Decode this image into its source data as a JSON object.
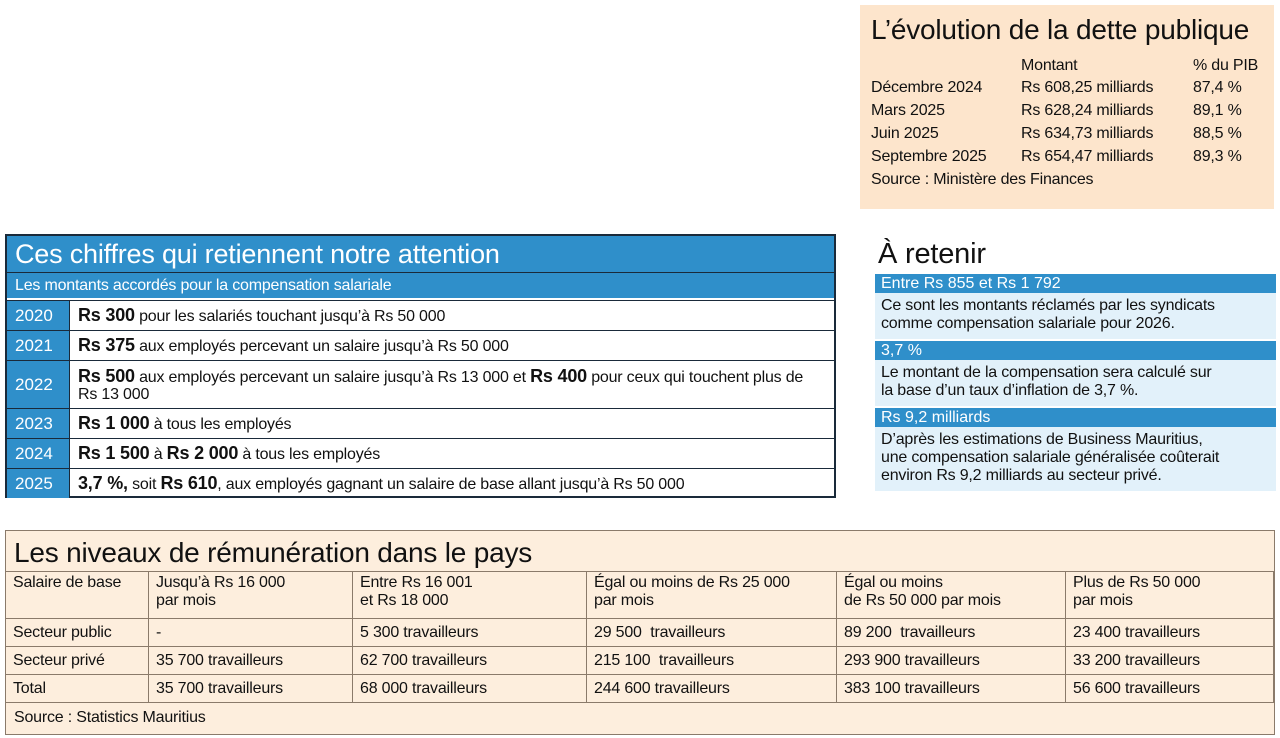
{
  "debt": {
    "title": "L’évolution de la dette publique",
    "columns": [
      "Montant",
      "% du PIB"
    ],
    "rows": [
      {
        "period": "Décembre 2024",
        "amount": "Rs 608,25 milliards",
        "pct": "87,4 %"
      },
      {
        "period": "Mars 2025",
        "amount": "Rs 628,24 milliards",
        "pct": "89,1 %"
      },
      {
        "period": "Juin 2025",
        "amount": "Rs 634,73 milliards",
        "pct": "88,5 %"
      },
      {
        "period": "Septembre 2025",
        "amount": "Rs 654,47 milliards",
        "pct": "89,3 %"
      }
    ],
    "source": "Source : Ministère des Finances"
  },
  "compensation": {
    "title": "Ces chiffres qui retiennent notre attention",
    "subtitle": "Les montants accordés pour la compensation salariale",
    "rows": [
      {
        "year": "2020",
        "parts": [
          {
            "text": "Rs 300",
            "bold": true
          },
          {
            "text": " pour les salariés touchant jusqu’à Rs 50 000"
          }
        ]
      },
      {
        "year": "2021",
        "parts": [
          {
            "text": "Rs 375",
            "bold": true
          },
          {
            "text": " aux employés percevant un salaire jusqu’à Rs 50 000"
          }
        ]
      },
      {
        "year": "2022",
        "parts": [
          {
            "text": "Rs 500",
            "bold": true
          },
          {
            "text": " aux employés percevant un salaire jusqu’à Rs 13 000 et "
          },
          {
            "text": "Rs 400",
            "bold": true
          },
          {
            "text": " pour ceux qui touchent plus de Rs 13 000"
          }
        ]
      },
      {
        "year": "2023",
        "parts": [
          {
            "text": "Rs 1 000",
            "bold": true
          },
          {
            "text": " à tous les employés"
          }
        ]
      },
      {
        "year": "2024",
        "parts": [
          {
            "text": "Rs 1 500",
            "bold": true
          },
          {
            "text": " à "
          },
          {
            "text": "Rs 2 000",
            "bold": true
          },
          {
            "text": " à tous les employés"
          }
        ]
      },
      {
        "year": "2025",
        "parts": [
          {
            "text": "3,7 %,",
            "bold": true
          },
          {
            "text": " soit "
          },
          {
            "text": "Rs 610",
            "bold": true
          },
          {
            "text": ", aux employés gagnant un salaire de base allant jusqu’à Rs 50 000"
          }
        ]
      }
    ]
  },
  "retenir": {
    "title": "À retenir",
    "items": [
      {
        "label": "Entre Rs 855 et Rs 1 792",
        "lines": [
          "Ce sont les montants réclamés par les syndicats",
          "comme compensation salariale pour 2026."
        ]
      },
      {
        "label": "3,7 %",
        "lines": [
          "Le montant de la compensation sera calculé sur",
          "la base d’un taux d’inflation de 3,7 %."
        ]
      },
      {
        "label": "Rs 9,2 milliards",
        "lines": [
          "D’après les estimations de Business Mauritius,",
          "une compensation salariale généralisée coûterait",
          "environ Rs 9,2 milliards au secteur privé."
        ]
      }
    ]
  },
  "pay": {
    "title": "Les niveaux de rémunération dans le pays",
    "columns": [
      [
        "Salaire de base"
      ],
      [
        "Jusqu’à Rs 16 000",
        "par mois"
      ],
      [
        "Entre Rs 16 001",
        "et Rs 18 000"
      ],
      [
        "Égal ou moins de Rs 25 000",
        "par mois"
      ],
      [
        "Égal ou moins",
        "de Rs 50 000 par mois"
      ],
      [
        "Plus de Rs 50 000",
        "par mois"
      ]
    ],
    "rows": [
      [
        "Secteur public",
        "-",
        "5 300 travailleurs",
        "29 500  travailleurs",
        "89 200  travailleurs",
        "23 400 travailleurs"
      ],
      [
        "Secteur privé",
        "35 700 travailleurs",
        "62 700 travailleurs",
        "215 100  travailleurs",
        "293 900 travailleurs",
        "33 200 travailleurs"
      ],
      [
        "Total",
        "35 700 travailleurs",
        "68 000 travailleurs",
        "244 600 travailleurs",
        "383 100 travailleurs",
        "56 600 travailleurs"
      ]
    ],
    "source": "Source : Statistics Mauritius"
  }
}
